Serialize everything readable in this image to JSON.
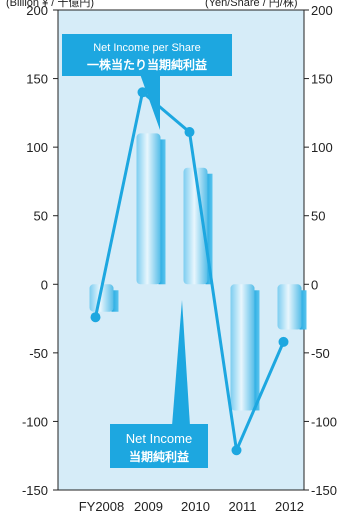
{
  "chart_data": {
    "type": "bar+line",
    "unit_left": "(Billion ¥ / 十億円)",
    "unit_right": "(Yen/Share / 円/株)",
    "categories": [
      "FY2008",
      "2009",
      "2010",
      "2011",
      "2012"
    ],
    "ylim": [
      -150,
      200
    ],
    "yticks": [
      200,
      150,
      100,
      50,
      0,
      -50,
      -100,
      -150
    ],
    "series": [
      {
        "name": "Net Income 当期純利益",
        "kind": "bar",
        "values": [
          -20,
          110,
          85,
          -92,
          -33
        ]
      },
      {
        "name": "Net Income per Share 一株当たり当期純利益",
        "kind": "line",
        "values": [
          -24,
          140,
          111,
          -121,
          -42
        ]
      }
    ],
    "legend": {
      "line_label_1": "Net Income per Share",
      "line_label_2": "一株当たり当期純利益",
      "bar_label_1": "Net Income",
      "bar_label_2": "当期純利益"
    },
    "grid": false,
    "colors": {
      "plot_bg": "#d6ecf8",
      "accent": "#1da7e0",
      "bar_light": "#e8f6fd",
      "bar_mid": "#7ccdf0",
      "axis": "#222222"
    }
  }
}
